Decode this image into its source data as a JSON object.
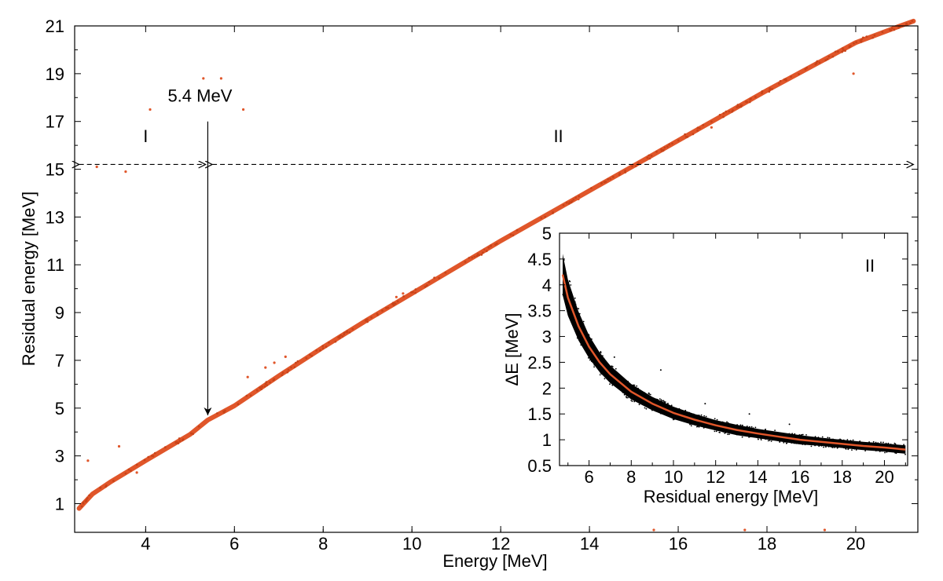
{
  "chart_data": [
    {
      "id": "main",
      "type": "scatter",
      "title": "",
      "xlabel": "Energy [MeV]",
      "ylabel": "Residual energy [MeV]",
      "xlim": [
        2.4,
        21.4
      ],
      "ylim": [
        -0.2,
        21.0
      ],
      "xticks": [
        4,
        6,
        8,
        10,
        12,
        14,
        16,
        18,
        20
      ],
      "yticks": [
        1,
        3,
        5,
        7,
        9,
        11,
        13,
        15,
        17,
        19,
        21
      ],
      "point_color": "#e0562a",
      "band_curve": {
        "name": "main band",
        "x": [
          2.5,
          2.8,
          3.2,
          3.6,
          4.0,
          4.5,
          5.0,
          5.4,
          6.0,
          7.0,
          8.0,
          9.0,
          10.0,
          11.0,
          12.0,
          13.0,
          14.0,
          15.0,
          16.0,
          17.0,
          18.0,
          19.0,
          20.0,
          21.0,
          21.3
        ],
        "y": [
          0.8,
          1.4,
          1.9,
          2.35,
          2.8,
          3.35,
          3.9,
          4.5,
          5.1,
          6.35,
          7.55,
          8.7,
          9.8,
          10.9,
          12.0,
          13.05,
          14.1,
          15.15,
          16.2,
          17.25,
          18.3,
          19.3,
          20.3,
          21.0,
          21.2
        ]
      },
      "outliers": {
        "x": [
          2.7,
          3.4,
          3.8,
          4.1,
          3.55,
          2.9,
          5.3,
          5.7,
          6.2,
          6.3,
          6.7,
          6.9,
          7.15,
          9.65,
          9.8,
          11.6,
          12.65,
          13.75,
          16.75,
          19.95,
          15.45,
          17.5,
          19.3
        ],
        "y": [
          2.8,
          3.4,
          2.3,
          17.5,
          14.9,
          15.1,
          18.8,
          18.8,
          17.5,
          6.3,
          6.7,
          6.9,
          7.15,
          9.65,
          9.8,
          11.6,
          12.65,
          13.75,
          16.75,
          19.0,
          -0.1,
          -0.1,
          -0.1
        ]
      },
      "annotations": {
        "marker_label": "5.4 MeV",
        "marker_x": 5.4,
        "arrow_from_y": 17.0,
        "arrow_to_y": 4.7,
        "region_1_label": "I",
        "region_2_label": "II",
        "region_y": 15.2,
        "region_1_range": [
          2.5,
          5.35
        ],
        "region_2_range": [
          5.5,
          21.3
        ],
        "region_label_y": 16.4,
        "region_1_label_x": 4.0,
        "region_2_label_x": 13.3
      }
    },
    {
      "id": "inset",
      "type": "scatter",
      "title": "",
      "xlabel": "Residual energy [MeV]",
      "ylabel": "ΔE [MeV]",
      "xlim": [
        4.6,
        21.1
      ],
      "ylim": [
        0.5,
        5.0
      ],
      "xticks": [
        6,
        8,
        10,
        12,
        14,
        16,
        18,
        20
      ],
      "yticks": [
        0.5,
        1,
        1.5,
        2,
        2.5,
        3,
        3.5,
        4,
        4.5,
        5
      ],
      "region_label": "II",
      "scatter_color": "#000000",
      "fit_color": "#e0562a",
      "fit_curve": {
        "name": "fit",
        "x": [
          4.75,
          5.0,
          5.5,
          6.0,
          6.5,
          7.0,
          8.0,
          9.0,
          10.0,
          11.0,
          12.0,
          13.0,
          14.0,
          15.0,
          16.0,
          17.0,
          18.0,
          19.0,
          20.0,
          21.0
        ],
        "y": [
          4.2,
          3.75,
          3.2,
          2.8,
          2.5,
          2.27,
          1.93,
          1.7,
          1.52,
          1.39,
          1.28,
          1.19,
          1.12,
          1.06,
          1.0,
          0.96,
          0.92,
          0.88,
          0.85,
          0.81
        ]
      },
      "band_halfwidth": [
        0.4,
        0.35,
        0.28,
        0.22,
        0.19,
        0.17,
        0.15,
        0.13,
        0.12,
        0.11,
        0.1,
        0.1,
        0.09,
        0.09,
        0.09,
        0.08,
        0.08,
        0.08,
        0.08,
        0.08
      ],
      "stray_points": {
        "x": [
          7.2,
          9.4,
          11.5,
          13.6,
          15.5
        ],
        "y": [
          2.6,
          2.35,
          1.7,
          1.5,
          1.3
        ]
      }
    }
  ]
}
